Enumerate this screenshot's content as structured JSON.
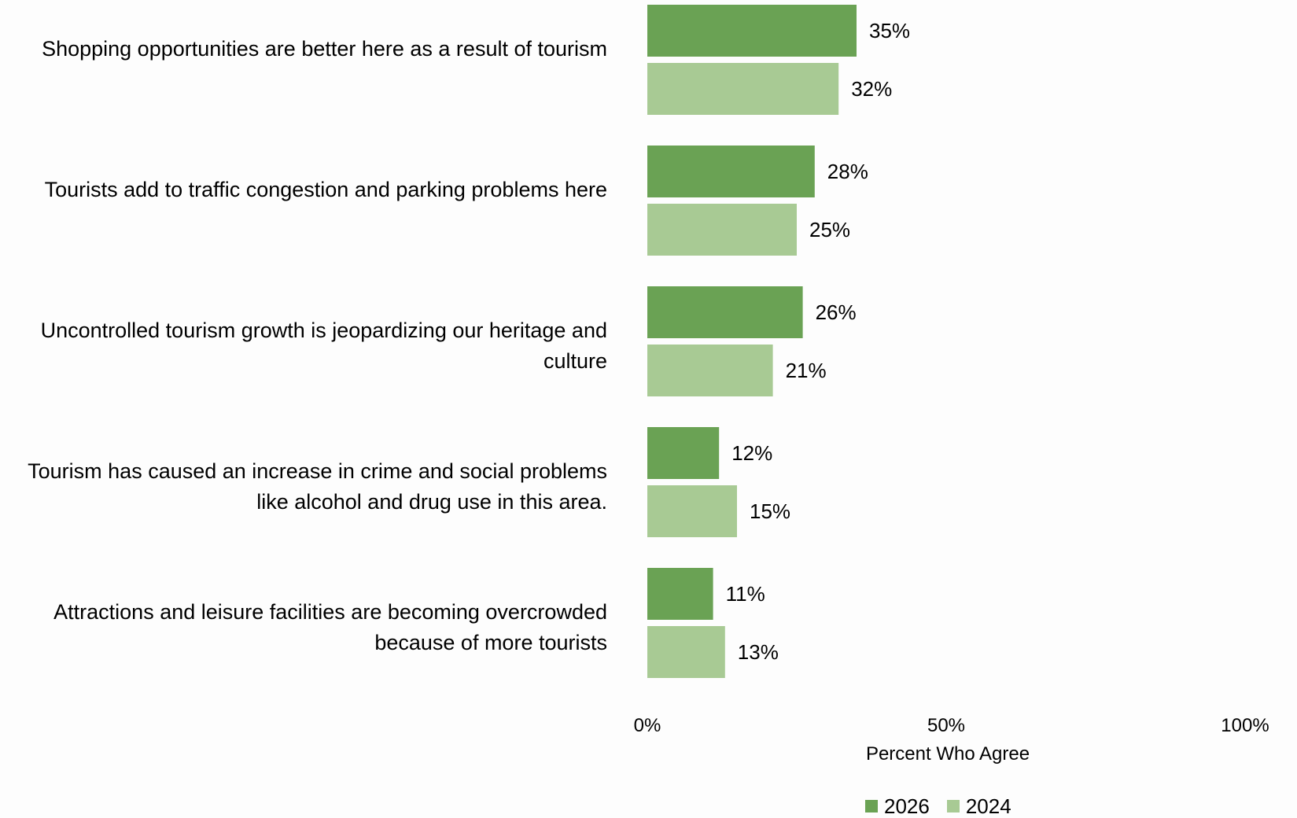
{
  "chart_data": {
    "type": "bar",
    "orientation": "horizontal",
    "categories": [
      "Shopping opportunities are better here as a result of tourism",
      "Tourists add to traffic congestion and parking problems here",
      "Uncontrolled tourism growth is jeopardizing our heritage and culture",
      "Tourism has caused an increase in crime and social problems like alcohol and drug use in this area.",
      "Attractions and leisure facilities are becoming overcrowded because of more tourists"
    ],
    "series": [
      {
        "name": "2026",
        "values": [
          35,
          28,
          26,
          12,
          11
        ],
        "color": "#6aa254"
      },
      {
        "name": "2024",
        "values": [
          32,
          25,
          21,
          15,
          13
        ],
        "color": "#a8ca94"
      }
    ],
    "value_suffix": "%",
    "xlim": [
      0,
      100
    ],
    "xticks": [
      "0%",
      "50%",
      "100%"
    ],
    "xlabel": "Percent Who Agree",
    "grid": false,
    "legend_position": "bottom"
  }
}
